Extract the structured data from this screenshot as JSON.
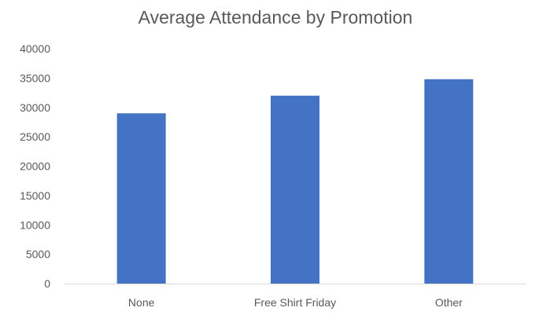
{
  "chart_data": {
    "type": "bar",
    "title": "Average Attendance by Promotion",
    "xlabel": "",
    "ylabel": "",
    "categories": [
      "None",
      "Free Shirt Friday",
      "Other"
    ],
    "values": [
      29000,
      32000,
      34800
    ],
    "ylim": [
      0,
      40000
    ],
    "yticks": [
      "0",
      "5000",
      "10000",
      "15000",
      "20000",
      "25000",
      "30000",
      "35000",
      "40000"
    ],
    "grid": false,
    "legend": "none",
    "bar_color": "#4472c4"
  }
}
